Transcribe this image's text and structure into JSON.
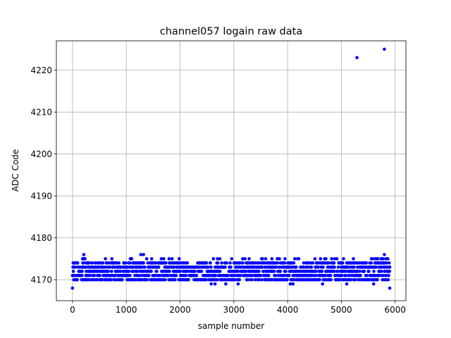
{
  "chart_data": {
    "type": "scatter",
    "title": "channel057 logain raw data",
    "xlabel": "sample number",
    "ylabel": "ADC Code",
    "xlim": [
      -300,
      6200
    ],
    "ylim": [
      4165,
      4227
    ],
    "xticks": [
      0,
      1000,
      2000,
      3000,
      4000,
      5000,
      6000
    ],
    "yticks": [
      4170,
      4180,
      4190,
      4200,
      4210,
      4220
    ],
    "xtick_labels": [
      "0",
      "1000",
      "2000",
      "3000",
      "4000",
      "5000",
      "6000"
    ],
    "ytick_labels": [
      "4170",
      "4180",
      "4190",
      "4200",
      "4210",
      "4220"
    ],
    "grid": true,
    "marker_color": "#0000ff",
    "series": [
      {
        "description_bulk": {
          "x_range": [
            0,
            5900
          ],
          "n_samples": 5900,
          "y_typical_range": [
            4170,
            4174
          ],
          "y_values_observed": [
            4169,
            4170,
            4171,
            4172,
            4173,
            4174,
            4175,
            4176
          ]
        },
        "outliers": [
          {
            "x": 0,
            "y": 4168
          },
          {
            "x": 210,
            "y": 4176
          },
          {
            "x": 1270,
            "y": 4176
          },
          {
            "x": 1320,
            "y": 4176
          },
          {
            "x": 5290,
            "y": 4223
          },
          {
            "x": 5800,
            "y": 4225
          },
          {
            "x": 5800,
            "y": 4176
          },
          {
            "x": 5900,
            "y": 4168
          },
          {
            "x": 2580,
            "y": 4169
          },
          {
            "x": 2650,
            "y": 4169
          },
          {
            "x": 2850,
            "y": 4169
          },
          {
            "x": 3080,
            "y": 4169
          },
          {
            "x": 4050,
            "y": 4169
          },
          {
            "x": 4100,
            "y": 4169
          },
          {
            "x": 4650,
            "y": 4169
          },
          {
            "x": 5100,
            "y": 4169
          },
          {
            "x": 5600,
            "y": 4169
          }
        ]
      }
    ]
  }
}
